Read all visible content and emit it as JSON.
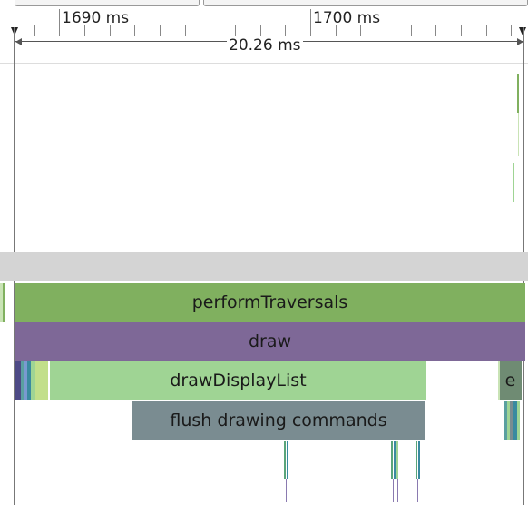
{
  "ruler": {
    "tick_label_1": "1690 ms",
    "tick_label_2": "1700 ms",
    "range_duration": "20.26 ms"
  },
  "flame": {
    "slices": [
      {
        "id": "performTraversals",
        "label": "performTraversals",
        "color": "#80b05f"
      },
      {
        "id": "draw",
        "label": "draw",
        "color": "#7e6897"
      },
      {
        "id": "drawDisplayList",
        "label": "drawDisplayList",
        "color": "#9fd494"
      },
      {
        "id": "flushDrawingCommands",
        "label": "flush drawing commands",
        "color": "#7a8c91"
      },
      {
        "id": "truncated",
        "label": "e",
        "color": "#6f8b73"
      }
    ]
  },
  "colors": {
    "ruler_line": "#555555",
    "track_divider": "#d4d4d4",
    "marker": "#222222"
  }
}
